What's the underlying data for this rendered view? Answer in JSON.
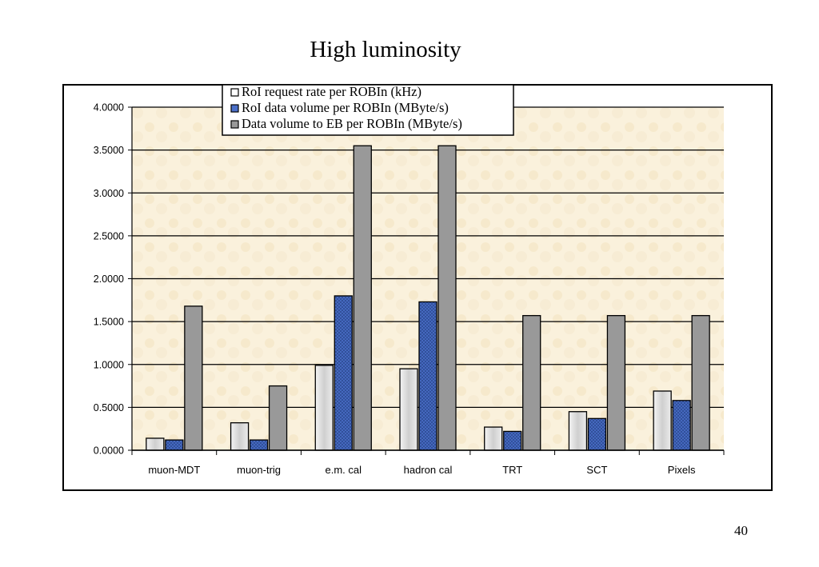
{
  "slide": {
    "title": "High luminosity",
    "page_number": "40"
  },
  "colors": {
    "background_panel": "#faf1dc",
    "gridline": "#000000",
    "series_1": "#e6e6e6",
    "series_2": "#4a6fc8",
    "series_3": "#999999"
  },
  "chart_data": {
    "type": "bar",
    "title": "High luminosity",
    "categories": [
      "muon-MDT",
      "muon-trig",
      "e.m. cal",
      "hadron cal",
      "TRT",
      "SCT",
      "Pixels"
    ],
    "series": [
      {
        "name": "RoI request rate per ROBIn (kHz)",
        "values": [
          0.14,
          0.32,
          0.99,
          0.95,
          0.27,
          0.45,
          0.69
        ]
      },
      {
        "name": "RoI data volume per ROBIn (MByte/s)",
        "values": [
          0.12,
          0.12,
          1.8,
          1.73,
          0.22,
          0.37,
          0.58
        ]
      },
      {
        "name": "Data volume to EB per ROBIn (MByte/s)",
        "values": [
          1.68,
          0.75,
          3.55,
          3.55,
          1.57,
          1.57,
          1.57
        ]
      }
    ],
    "ylim": [
      0,
      4
    ],
    "yticks": [
      "0.0000",
      "0.5000",
      "1.0000",
      "1.5000",
      "2.0000",
      "2.5000",
      "3.0000",
      "3.5000",
      "4.0000"
    ],
    "xlabel": "",
    "ylabel": "",
    "grid": true,
    "legend_position": "top-center"
  }
}
